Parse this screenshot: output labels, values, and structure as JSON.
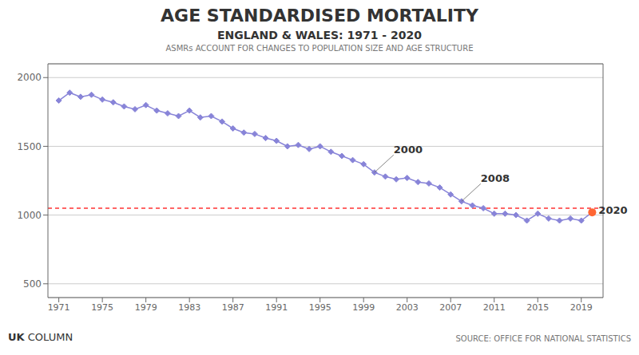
{
  "chart_data": {
    "type": "line",
    "title": "AGE STANDARDISED MORTALITY",
    "subtitle": [
      "ENGLAND & WALES: 1971 - 2020",
      "ASMRs ACCOUNT FOR CHANGES TO POPULATION SIZE AND AGE STRUCTURE"
    ],
    "branding": [
      "UK",
      "COLUMN"
    ],
    "source": "SOURCE: OFFICE FOR NATIONAL STATISTICS",
    "x": [
      1971,
      1972,
      1973,
      1974,
      1975,
      1976,
      1977,
      1978,
      1979,
      1980,
      1981,
      1982,
      1983,
      1984,
      1985,
      1986,
      1987,
      1988,
      1989,
      1990,
      1991,
      1992,
      1993,
      1994,
      1995,
      1996,
      1997,
      1998,
      1999,
      2000,
      2001,
      2002,
      2003,
      2004,
      2005,
      2006,
      2007,
      2008,
      2009,
      2010,
      2011,
      2012,
      2013,
      2014,
      2015,
      2016,
      2017,
      2018,
      2019,
      2020
    ],
    "values": [
      1833,
      1890,
      1860,
      1875,
      1840,
      1820,
      1790,
      1770,
      1800,
      1760,
      1740,
      1720,
      1760,
      1710,
      1720,
      1680,
      1630,
      1600,
      1590,
      1560,
      1540,
      1500,
      1510,
      1480,
      1500,
      1460,
      1430,
      1400,
      1370,
      1310,
      1280,
      1260,
      1270,
      1240,
      1230,
      1200,
      1150,
      1100,
      1070,
      1050,
      1010,
      1010,
      1000,
      960,
      1010,
      975,
      960,
      975,
      960,
      1020
    ],
    "color": "#8884d8",
    "marker": "diamond",
    "xlim": [
      1970,
      2021
    ],
    "xticks": [
      1971,
      1975,
      1979,
      1983,
      1987,
      1991,
      1995,
      1999,
      2003,
      2007,
      2011,
      2015,
      2019
    ],
    "ylim": [
      400,
      2100
    ],
    "yticks": [
      500,
      1000,
      1500,
      2000
    ],
    "grid": true,
    "reference_line": {
      "value": 1050,
      "color": "#FF3333",
      "line_style": "dashed"
    },
    "annotations": [
      {
        "text": "2000",
        "x": 2000,
        "y": 1310
      },
      {
        "text": "2008",
        "x": 2008,
        "y": 1100
      },
      {
        "text": "2020",
        "x": 2020,
        "y": 1020,
        "color": "#FF6633"
      }
    ]
  }
}
